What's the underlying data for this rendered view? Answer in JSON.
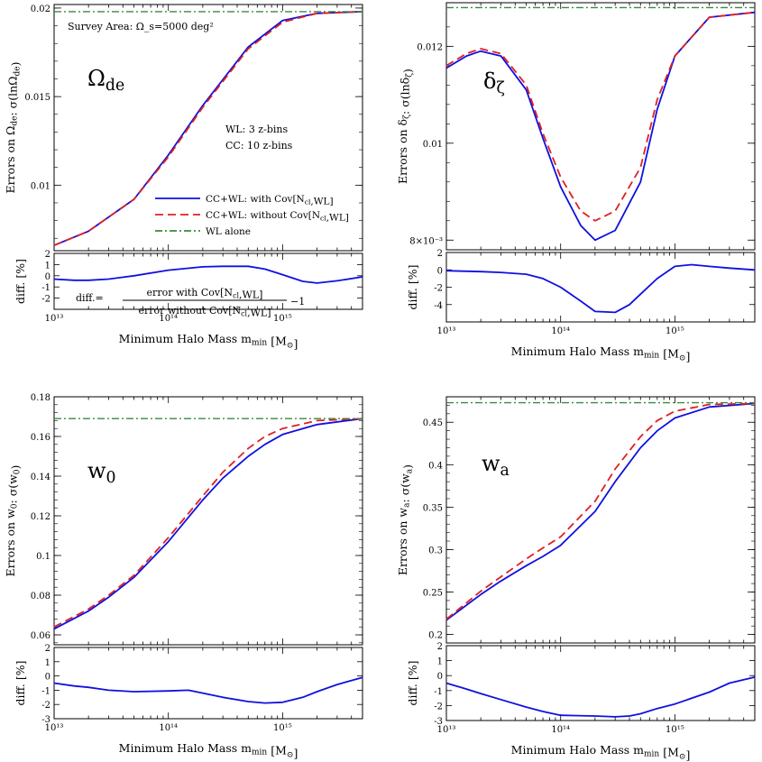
{
  "figure_colors": {
    "with_cov": "#1010e0",
    "without_cov": "#e02020",
    "wl_alone": "#3a8a3a"
  },
  "legend": {
    "with_cov": "CC+WL: with Cov[N_cl,WL]",
    "without_cov": "CC+WL: without Cov[N_cl,WL]",
    "wl_alone": "WL alone"
  },
  "annotations": {
    "survey_area": "Survey Area: Ω_s=5000 deg²",
    "wl_bins": "WL: 3 z-bins",
    "cc_bins": "CC: 10 z-bins",
    "diff_lhs": "diff.=",
    "diff_num": "error with Cov[N_cl,WL]",
    "diff_den": "error without Cov[N_cl,WL]",
    "diff_tail": "−1"
  },
  "shared_xlabel": "Minimum Halo Mass m_min [M_⊙]",
  "diff_ylabel": "diff. [%]",
  "chart_data": [
    {
      "type": "line",
      "panel": "Omega_de",
      "param_label": "Ω_de",
      "ylabel": "Errors on Ω_de: σ(lnΩ_de)",
      "xscale": "log",
      "xlim": [
        10000000000000.0,
        5000000000000000.0
      ],
      "ylim": [
        0.0063,
        0.0202
      ],
      "yticks": [
        0.01,
        0.015,
        0.02
      ],
      "ytick_labels": [
        "0.01",
        "0.015",
        "0.02"
      ],
      "xticks": [
        10000000000000.0,
        100000000000000.0,
        1000000000000000.0
      ],
      "xtick_labels": [
        "10¹³",
        "10¹⁴",
        "10¹⁵"
      ],
      "series": [
        {
          "name": "CC+WL: with Cov[N_cl,WL]",
          "x": [
            10000000000000.0,
            20000000000000.0,
            50000000000000.0,
            100000000000000.0,
            200000000000000.0,
            500000000000000.0,
            1000000000000000.0,
            2000000000000000.0,
            5000000000000000.0
          ],
          "values": [
            0.0066,
            0.0074,
            0.0092,
            0.0117,
            0.0145,
            0.0178,
            0.0193,
            0.0197,
            0.0198
          ]
        },
        {
          "name": "CC+WL: without Cov[N_cl,WL]",
          "x": [
            10000000000000.0,
            20000000000000.0,
            50000000000000.0,
            100000000000000.0,
            200000000000000.0,
            500000000000000.0,
            1000000000000000.0,
            2000000000000000.0,
            5000000000000000.0
          ],
          "values": [
            0.0066,
            0.0074,
            0.0092,
            0.0116,
            0.0144,
            0.0177,
            0.0192,
            0.0197,
            0.0198
          ]
        },
        {
          "name": "WL alone",
          "x": [
            10000000000000.0,
            5000000000000000.0
          ],
          "values": [
            0.0198,
            0.0198
          ]
        }
      ],
      "diff": {
        "ylim": [
          -3,
          2
        ],
        "yticks": [
          -3,
          -2,
          -1,
          0,
          1,
          2
        ],
        "ytick_labels": [
          "",
          "-2",
          "-1",
          "0",
          "1",
          "2"
        ],
        "x": [
          10000000000000.0,
          15000000000000.0,
          20000000000000.0,
          30000000000000.0,
          50000000000000.0,
          100000000000000.0,
          200000000000000.0,
          300000000000000.0,
          500000000000000.0,
          700000000000000.0,
          1000000000000000.0,
          1500000000000000.0,
          2000000000000000.0,
          3000000000000000.0,
          5000000000000000.0
        ],
        "values": [
          -0.3,
          -0.4,
          -0.4,
          -0.3,
          0.0,
          0.5,
          0.8,
          0.85,
          0.85,
          0.6,
          0.1,
          -0.5,
          -0.65,
          -0.45,
          -0.1
        ]
      }
    },
    {
      "type": "line",
      "panel": "delta_zeta",
      "param_label": "δ_ζ",
      "ylabel": "Errors on δ_ζ: σ(lnδ_ζ)",
      "xscale": "log",
      "xlim": [
        10000000000000.0,
        5000000000000000.0
      ],
      "ylim": [
        0.0078,
        0.0129
      ],
      "yticks": [
        0.008,
        0.01,
        0.012
      ],
      "ytick_labels": [
        "8×10⁻³",
        "0.01",
        "0.012"
      ],
      "xticks": [
        10000000000000.0,
        100000000000000.0,
        1000000000000000.0
      ],
      "xtick_labels": [
        "10¹³",
        "10¹⁴",
        "10¹⁵"
      ],
      "series": [
        {
          "name": "CC+WL: with Cov[N_cl,WL]",
          "x": [
            10000000000000.0,
            15000000000000.0,
            20000000000000.0,
            30000000000000.0,
            50000000000000.0,
            70000000000000.0,
            100000000000000.0,
            150000000000000.0,
            200000000000000.0,
            300000000000000.0,
            500000000000000.0,
            700000000000000.0,
            1000000000000000.0,
            2000000000000000.0,
            5000000000000000.0
          ],
          "values": [
            0.01155,
            0.0118,
            0.0119,
            0.0118,
            0.0111,
            0.0101,
            0.0091,
            0.0083,
            0.008,
            0.0082,
            0.0092,
            0.0107,
            0.0118,
            0.0126,
            0.0127
          ]
        },
        {
          "name": "CC+WL: without Cov[N_cl,WL]",
          "x": [
            10000000000000.0,
            15000000000000.0,
            20000000000000.0,
            30000000000000.0,
            50000000000000.0,
            70000000000000.0,
            100000000000000.0,
            150000000000000.0,
            200000000000000.0,
            300000000000000.0,
            500000000000000.0,
            700000000000000.0,
            1000000000000000.0,
            2000000000000000.0,
            5000000000000000.0
          ],
          "values": [
            0.0116,
            0.01185,
            0.01195,
            0.01185,
            0.0112,
            0.0102,
            0.0093,
            0.0086,
            0.0084,
            0.0086,
            0.0095,
            0.0109,
            0.0118,
            0.0126,
            0.0127
          ]
        },
        {
          "name": "WL alone",
          "x": [
            10000000000000.0,
            5000000000000000.0
          ],
          "values": [
            0.0128,
            0.0128
          ]
        }
      ],
      "diff": {
        "ylim": [
          -6,
          2
        ],
        "yticks": [
          -4,
          -2,
          0,
          2
        ],
        "ytick_labels": [
          "-4",
          "-2",
          "0",
          "2"
        ],
        "x": [
          10000000000000.0,
          20000000000000.0,
          30000000000000.0,
          50000000000000.0,
          70000000000000.0,
          100000000000000.0,
          150000000000000.0,
          200000000000000.0,
          300000000000000.0,
          400000000000000.0,
          500000000000000.0,
          700000000000000.0,
          1000000000000000.0,
          1400000000000000.0,
          2000000000000000.0,
          3000000000000000.0,
          5000000000000000.0
        ],
        "values": [
          -0.1,
          -0.2,
          -0.3,
          -0.5,
          -1.0,
          -2.0,
          -3.6,
          -4.8,
          -4.9,
          -4.0,
          -2.8,
          -1.0,
          0.4,
          0.6,
          0.4,
          0.2,
          0.0
        ]
      }
    },
    {
      "type": "line",
      "panel": "w0",
      "param_label": "w_0",
      "ylabel": "Errors on w_0: σ(w_0)",
      "xscale": "log",
      "xlim": [
        10000000000000.0,
        5000000000000000.0
      ],
      "ylim": [
        0.055,
        0.18
      ],
      "yticks": [
        0.06,
        0.08,
        0.1,
        0.12,
        0.14,
        0.16,
        0.18
      ],
      "ytick_labels": [
        "0.06",
        "0.08",
        "0.1",
        "0.12",
        "0.14",
        "0.16",
        "0.18"
      ],
      "xticks": [
        10000000000000.0,
        100000000000000.0,
        1000000000000000.0
      ],
      "xtick_labels": [
        "10¹³",
        "10¹⁴",
        "10¹⁵"
      ],
      "series": [
        {
          "name": "CC+WL: with Cov[N_cl,WL]",
          "x": [
            10000000000000.0,
            20000000000000.0,
            30000000000000.0,
            50000000000000.0,
            100000000000000.0,
            200000000000000.0,
            300000000000000.0,
            500000000000000.0,
            700000000000000.0,
            1000000000000000.0,
            2000000000000000.0,
            5000000000000000.0
          ],
          "values": [
            0.063,
            0.072,
            0.079,
            0.089,
            0.107,
            0.128,
            0.139,
            0.15,
            0.156,
            0.161,
            0.166,
            0.169
          ]
        },
        {
          "name": "CC+WL: without Cov[N_cl,WL]",
          "x": [
            10000000000000.0,
            20000000000000.0,
            30000000000000.0,
            50000000000000.0,
            100000000000000.0,
            200000000000000.0,
            300000000000000.0,
            500000000000000.0,
            700000000000000.0,
            1000000000000000.0,
            2000000000000000.0,
            5000000000000000.0
          ],
          "values": [
            0.064,
            0.073,
            0.08,
            0.09,
            0.109,
            0.13,
            0.142,
            0.154,
            0.16,
            0.164,
            0.168,
            0.169
          ]
        },
        {
          "name": "WL alone",
          "x": [
            10000000000000.0,
            5000000000000000.0
          ],
          "values": [
            0.169,
            0.169
          ]
        }
      ],
      "diff": {
        "ylim": [
          -3,
          2
        ],
        "yticks": [
          -3,
          -2,
          -1,
          0,
          1,
          2
        ],
        "ytick_labels": [
          "-3",
          "-2",
          "-1",
          "0",
          "1",
          "2"
        ],
        "x": [
          10000000000000.0,
          15000000000000.0,
          20000000000000.0,
          30000000000000.0,
          50000000000000.0,
          100000000000000.0,
          150000000000000.0,
          200000000000000.0,
          300000000000000.0,
          500000000000000.0,
          700000000000000.0,
          1000000000000000.0,
          1500000000000000.0,
          2000000000000000.0,
          3000000000000000.0,
          5000000000000000.0
        ],
        "values": [
          -0.5,
          -0.7,
          -0.8,
          -1.0,
          -1.1,
          -1.05,
          -1.0,
          -1.2,
          -1.5,
          -1.8,
          -1.9,
          -1.85,
          -1.5,
          -1.1,
          -0.6,
          -0.1
        ]
      }
    },
    {
      "type": "line",
      "panel": "wa",
      "param_label": "w_a",
      "ylabel": "Errors on w_a: σ(w_a)",
      "xscale": "log",
      "xlim": [
        10000000000000.0,
        5000000000000000.0
      ],
      "ylim": [
        0.19,
        0.48
      ],
      "yticks": [
        0.2,
        0.25,
        0.3,
        0.35,
        0.4,
        0.45
      ],
      "ytick_labels": [
        "0.2",
        "0.25",
        "0.3",
        "0.35",
        "0.4",
        "0.45"
      ],
      "xticks": [
        10000000000000.0,
        100000000000000.0,
        1000000000000000.0
      ],
      "xtick_labels": [
        "10¹³",
        "10¹⁴",
        "10¹⁵"
      ],
      "series": [
        {
          "name": "CC+WL: with Cov[N_cl,WL]",
          "x": [
            10000000000000.0,
            20000000000000.0,
            30000000000000.0,
            50000000000000.0,
            70000000000000.0,
            100000000000000.0,
            200000000000000.0,
            300000000000000.0,
            500000000000000.0,
            700000000000000.0,
            1000000000000000.0,
            2000000000000000.0,
            5000000000000000.0
          ],
          "values": [
            0.217,
            0.247,
            0.263,
            0.281,
            0.292,
            0.305,
            0.345,
            0.38,
            0.42,
            0.44,
            0.455,
            0.468,
            0.472
          ]
        },
        {
          "name": "CC+WL: without Cov[N_cl,WL]",
          "x": [
            10000000000000.0,
            20000000000000.0,
            30000000000000.0,
            50000000000000.0,
            70000000000000.0,
            100000000000000.0,
            200000000000000.0,
            300000000000000.0,
            500000000000000.0,
            700000000000000.0,
            1000000000000000.0,
            2000000000000000.0,
            5000000000000000.0
          ],
          "values": [
            0.218,
            0.251,
            0.268,
            0.289,
            0.302,
            0.315,
            0.357,
            0.395,
            0.433,
            0.452,
            0.463,
            0.471,
            0.472
          ]
        },
        {
          "name": "WL alone",
          "x": [
            10000000000000.0,
            5000000000000000.0
          ],
          "values": [
            0.473,
            0.473
          ]
        }
      ],
      "diff": {
        "ylim": [
          -3,
          2
        ],
        "yticks": [
          -3,
          -2,
          -1,
          0,
          1,
          2
        ],
        "ytick_labels": [
          "-3",
          "-2",
          "-1",
          "0",
          "1",
          "2"
        ],
        "x": [
          10000000000000.0,
          15000000000000.0,
          20000000000000.0,
          30000000000000.0,
          50000000000000.0,
          70000000000000.0,
          100000000000000.0,
          200000000000000.0,
          300000000000000.0,
          400000000000000.0,
          500000000000000.0,
          700000000000000.0,
          1000000000000000.0,
          2000000000000000.0,
          3000000000000000.0,
          5000000000000000.0
        ],
        "values": [
          -0.5,
          -0.9,
          -1.2,
          -1.6,
          -2.1,
          -2.4,
          -2.65,
          -2.7,
          -2.75,
          -2.7,
          -2.55,
          -2.2,
          -1.9,
          -1.1,
          -0.5,
          -0.1
        ]
      }
    }
  ]
}
